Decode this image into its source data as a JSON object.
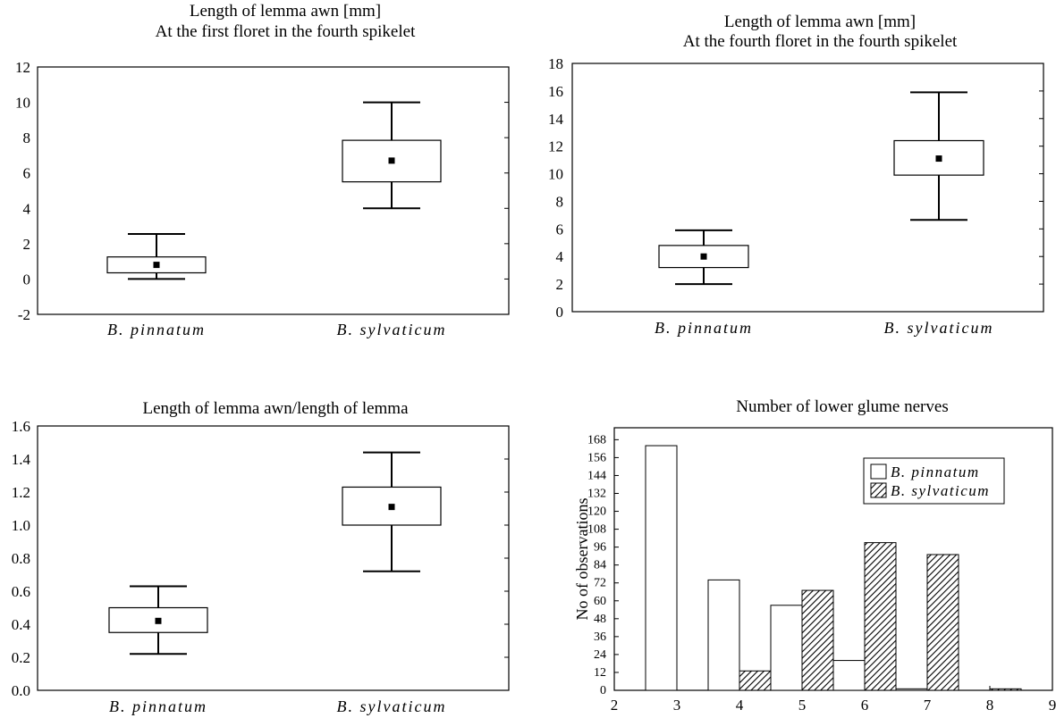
{
  "chart_data": [
    {
      "type": "box",
      "title_lines": [
        "Length of lemma awn [mm]",
        "At the first floret in the fourth spikelet"
      ],
      "categories": [
        "B. pinnatum",
        "B. sylvaticum"
      ],
      "y_ticks": [
        "-2",
        "0",
        "2",
        "4",
        "6",
        "8",
        "10",
        "12"
      ],
      "ylim": [
        -2,
        12
      ],
      "boxes": [
        {
          "category": "B. pinnatum",
          "whisker_low": 0.0,
          "box_low": 0.35,
          "mean": 0.8,
          "box_high": 1.25,
          "whisker_high": 2.55
        },
        {
          "category": "B. sylvaticum",
          "whisker_low": 4.0,
          "box_low": 5.5,
          "mean": 6.7,
          "box_high": 7.85,
          "whisker_high": 10.0
        }
      ]
    },
    {
      "type": "box",
      "title_lines": [
        "Length of lemma awn [mm]",
        "At the fourth floret in the fourth spikelet"
      ],
      "categories": [
        "B. pinnatum",
        "B. sylvaticum"
      ],
      "y_ticks": [
        "0",
        "2",
        "4",
        "6",
        "8",
        "10",
        "12",
        "14",
        "16",
        "18"
      ],
      "ylim": [
        0,
        18
      ],
      "boxes": [
        {
          "category": "B. pinnatum",
          "whisker_low": 2.0,
          "box_low": 3.2,
          "mean": 4.0,
          "box_high": 4.8,
          "whisker_high": 5.9
        },
        {
          "category": "B. sylvaticum",
          "whisker_low": 6.65,
          "box_low": 9.9,
          "mean": 11.1,
          "box_high": 12.4,
          "whisker_high": 15.9
        }
      ]
    },
    {
      "type": "box",
      "title_lines": [
        "Length of lemma awn/length of lemma"
      ],
      "categories": [
        "B. pinnatum",
        "B. sylvaticum"
      ],
      "y_ticks": [
        "0.0",
        "0.2",
        "0.4",
        "0.6",
        "0.8",
        "1.0",
        "1.2",
        "1.4",
        "1.6"
      ],
      "ylim": [
        0,
        1.6
      ],
      "boxes": [
        {
          "category": "B. pinnatum",
          "whisker_low": 0.22,
          "box_low": 0.35,
          "mean": 0.42,
          "box_high": 0.5,
          "whisker_high": 0.63
        },
        {
          "category": "B. sylvaticum",
          "whisker_low": 0.72,
          "box_low": 1.0,
          "mean": 1.11,
          "box_high": 1.23,
          "whisker_high": 1.44
        }
      ]
    },
    {
      "type": "bar",
      "title_lines": [
        "Number of lower glume nerves"
      ],
      "ylabel": "No of observations",
      "x_ticks": [
        "2",
        "3",
        "4",
        "5",
        "6",
        "7",
        "8",
        "9"
      ],
      "xlim": [
        2,
        9
      ],
      "y_ticks": [
        "0",
        "12",
        "24",
        "36",
        "48",
        "60",
        "72",
        "84",
        "96",
        "108",
        "120",
        "132",
        "144",
        "156",
        "168"
      ],
      "ylim": [
        0,
        176
      ],
      "legend_position": "top-right",
      "series": [
        {
          "name": "B. pinnatum",
          "pattern": "white",
          "x": [
            3,
            4,
            5,
            6,
            7
          ],
          "values": [
            164,
            74,
            57,
            20,
            1
          ]
        },
        {
          "name": "B. sylvaticum",
          "pattern": "hatched",
          "x": [
            4,
            5,
            6,
            7,
            8
          ],
          "values": [
            13,
            67,
            99,
            91,
            1
          ]
        }
      ]
    }
  ]
}
